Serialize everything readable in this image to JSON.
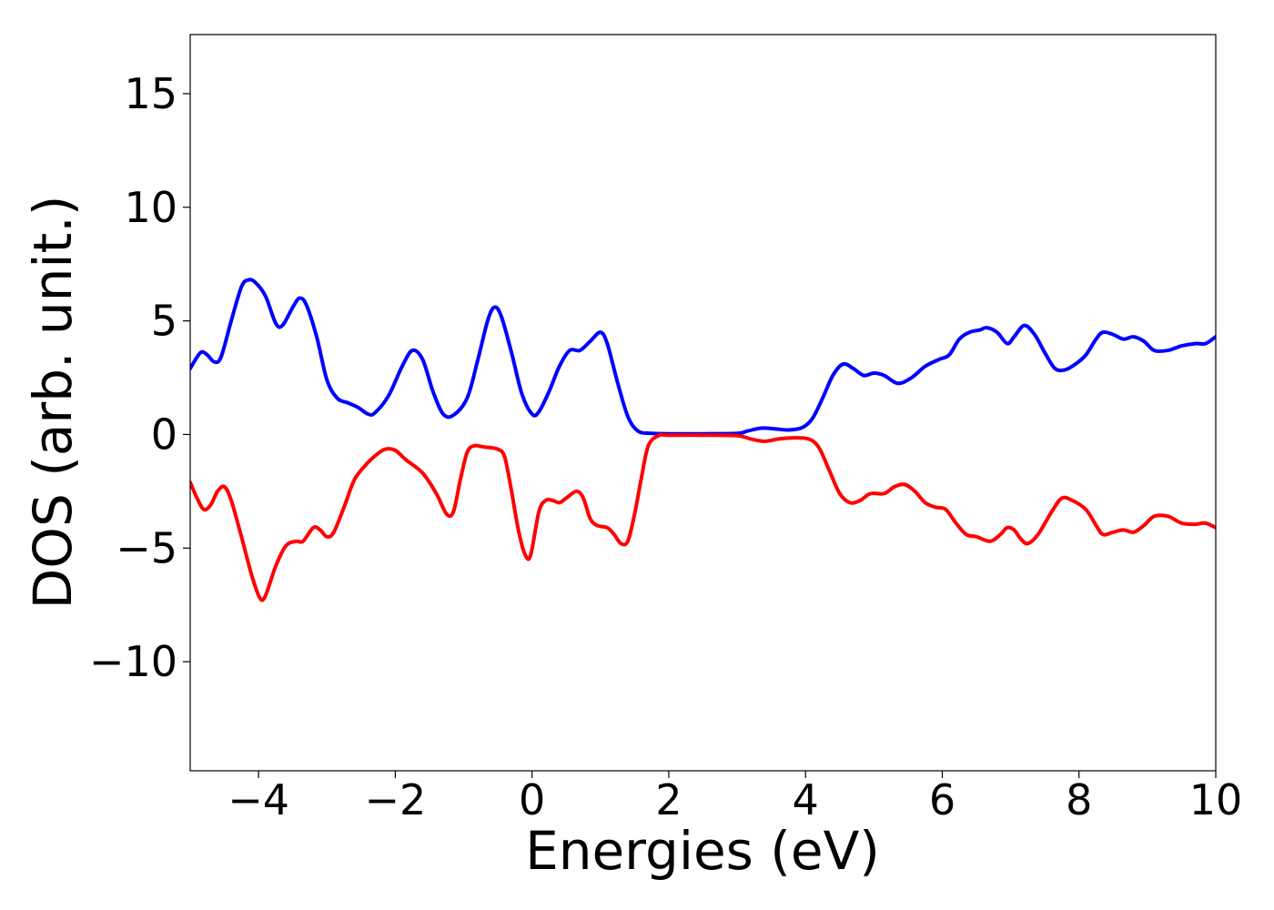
{
  "chart_data": {
    "type": "line",
    "xlabel": "Energies (eV)",
    "ylabel": "DOS (arb. unit.)",
    "xlim": [
      -5,
      10
    ],
    "ylim": [
      -14.8,
      17.6
    ],
    "xticks": [
      {
        "value": -4,
        "label": "−4"
      },
      {
        "value": -2,
        "label": "−2"
      },
      {
        "value": 0,
        "label": "0"
      },
      {
        "value": 2,
        "label": "2"
      },
      {
        "value": 4,
        "label": "4"
      },
      {
        "value": 6,
        "label": "6"
      },
      {
        "value": 8,
        "label": "8"
      },
      {
        "value": 10,
        "label": "10"
      }
    ],
    "yticks": [
      {
        "value": -10,
        "label": "−10"
      },
      {
        "value": -5,
        "label": "−5"
      },
      {
        "value": 0,
        "label": "0"
      },
      {
        "value": 5,
        "label": "5"
      },
      {
        "value": 10,
        "label": "10"
      },
      {
        "value": 15,
        "label": "15"
      }
    ],
    "grid": false,
    "series": [
      {
        "color": "#0000ff",
        "points": [
          [
            -5.0,
            2.9
          ],
          [
            -4.85,
            3.6
          ],
          [
            -4.75,
            3.5
          ],
          [
            -4.65,
            3.2
          ],
          [
            -4.55,
            3.4
          ],
          [
            -4.4,
            5.0
          ],
          [
            -4.25,
            6.5
          ],
          [
            -4.15,
            6.8
          ],
          [
            -4.05,
            6.7
          ],
          [
            -3.9,
            6.1
          ],
          [
            -3.75,
            4.9
          ],
          [
            -3.65,
            4.8
          ],
          [
            -3.5,
            5.6
          ],
          [
            -3.4,
            6.0
          ],
          [
            -3.3,
            5.7
          ],
          [
            -3.15,
            4.3
          ],
          [
            -3.0,
            2.4
          ],
          [
            -2.85,
            1.6
          ],
          [
            -2.7,
            1.4
          ],
          [
            -2.55,
            1.2
          ],
          [
            -2.4,
            0.9
          ],
          [
            -2.3,
            0.95
          ],
          [
            -2.1,
            1.7
          ],
          [
            -1.9,
            3.0
          ],
          [
            -1.75,
            3.7
          ],
          [
            -1.6,
            3.3
          ],
          [
            -1.45,
            1.9
          ],
          [
            -1.3,
            0.9
          ],
          [
            -1.15,
            0.85
          ],
          [
            -0.95,
            1.6
          ],
          [
            -0.8,
            3.2
          ],
          [
            -0.65,
            5.0
          ],
          [
            -0.55,
            5.6
          ],
          [
            -0.45,
            5.2
          ],
          [
            -0.3,
            3.6
          ],
          [
            -0.15,
            1.8
          ],
          [
            0.0,
            0.9
          ],
          [
            0.1,
            1.0
          ],
          [
            0.25,
            1.9
          ],
          [
            0.4,
            3.0
          ],
          [
            0.55,
            3.7
          ],
          [
            0.7,
            3.7
          ],
          [
            0.85,
            4.1
          ],
          [
            1.0,
            4.5
          ],
          [
            1.1,
            4.0
          ],
          [
            1.25,
            2.3
          ],
          [
            1.4,
            0.8
          ],
          [
            1.55,
            0.15
          ],
          [
            1.75,
            0.05
          ],
          [
            2.0,
            0.03
          ],
          [
            2.5,
            0.03
          ],
          [
            3.0,
            0.05
          ],
          [
            3.15,
            0.15
          ],
          [
            3.35,
            0.28
          ],
          [
            3.55,
            0.25
          ],
          [
            3.75,
            0.2
          ],
          [
            3.95,
            0.3
          ],
          [
            4.1,
            0.7
          ],
          [
            4.25,
            1.6
          ],
          [
            4.4,
            2.6
          ],
          [
            4.55,
            3.1
          ],
          [
            4.7,
            2.9
          ],
          [
            4.85,
            2.6
          ],
          [
            5.0,
            2.7
          ],
          [
            5.15,
            2.6
          ],
          [
            5.35,
            2.25
          ],
          [
            5.55,
            2.5
          ],
          [
            5.75,
            3.0
          ],
          [
            5.95,
            3.3
          ],
          [
            6.1,
            3.5
          ],
          [
            6.25,
            4.2
          ],
          [
            6.4,
            4.5
          ],
          [
            6.55,
            4.6
          ],
          [
            6.65,
            4.7
          ],
          [
            6.8,
            4.5
          ],
          [
            6.95,
            4.0
          ],
          [
            7.05,
            4.3
          ],
          [
            7.2,
            4.8
          ],
          [
            7.35,
            4.4
          ],
          [
            7.5,
            3.6
          ],
          [
            7.65,
            2.9
          ],
          [
            7.8,
            2.85
          ],
          [
            7.95,
            3.1
          ],
          [
            8.1,
            3.5
          ],
          [
            8.25,
            4.2
          ],
          [
            8.35,
            4.5
          ],
          [
            8.5,
            4.4
          ],
          [
            8.65,
            4.2
          ],
          [
            8.8,
            4.3
          ],
          [
            8.95,
            4.1
          ],
          [
            9.1,
            3.7
          ],
          [
            9.3,
            3.7
          ],
          [
            9.5,
            3.9
          ],
          [
            9.7,
            4.0
          ],
          [
            9.85,
            4.0
          ],
          [
            10.0,
            4.3
          ]
        ]
      },
      {
        "color": "#ff0000",
        "points": [
          [
            -5.0,
            -2.1
          ],
          [
            -4.9,
            -2.8
          ],
          [
            -4.8,
            -3.3
          ],
          [
            -4.7,
            -3.1
          ],
          [
            -4.6,
            -2.5
          ],
          [
            -4.5,
            -2.3
          ],
          [
            -4.4,
            -2.9
          ],
          [
            -4.25,
            -4.5
          ],
          [
            -4.1,
            -6.2
          ],
          [
            -3.98,
            -7.2
          ],
          [
            -3.9,
            -7.1
          ],
          [
            -3.75,
            -5.8
          ],
          [
            -3.6,
            -4.9
          ],
          [
            -3.45,
            -4.7
          ],
          [
            -3.35,
            -4.7
          ],
          [
            -3.2,
            -4.1
          ],
          [
            -3.1,
            -4.2
          ],
          [
            -3.0,
            -4.5
          ],
          [
            -2.9,
            -4.3
          ],
          [
            -2.75,
            -3.2
          ],
          [
            -2.6,
            -2.0
          ],
          [
            -2.45,
            -1.4
          ],
          [
            -2.3,
            -0.95
          ],
          [
            -2.15,
            -0.65
          ],
          [
            -2.0,
            -0.7
          ],
          [
            -1.85,
            -1.1
          ],
          [
            -1.6,
            -1.7
          ],
          [
            -1.4,
            -2.6
          ],
          [
            -1.25,
            -3.5
          ],
          [
            -1.15,
            -3.4
          ],
          [
            -1.05,
            -2.0
          ],
          [
            -0.95,
            -0.8
          ],
          [
            -0.85,
            -0.5
          ],
          [
            -0.7,
            -0.55
          ],
          [
            -0.5,
            -0.65
          ],
          [
            -0.4,
            -1.0
          ],
          [
            -0.3,
            -2.5
          ],
          [
            -0.2,
            -4.2
          ],
          [
            -0.1,
            -5.3
          ],
          [
            -0.02,
            -5.3
          ],
          [
            0.1,
            -3.4
          ],
          [
            0.2,
            -2.9
          ],
          [
            0.3,
            -2.9
          ],
          [
            0.4,
            -3.0
          ],
          [
            0.5,
            -2.8
          ],
          [
            0.65,
            -2.5
          ],
          [
            0.75,
            -2.8
          ],
          [
            0.85,
            -3.7
          ],
          [
            0.95,
            -4.0
          ],
          [
            1.1,
            -4.1
          ],
          [
            1.2,
            -4.4
          ],
          [
            1.3,
            -4.8
          ],
          [
            1.4,
            -4.7
          ],
          [
            1.5,
            -3.5
          ],
          [
            1.6,
            -1.9
          ],
          [
            1.7,
            -0.5
          ],
          [
            1.85,
            -0.05
          ],
          [
            2.0,
            -0.03
          ],
          [
            2.5,
            -0.03
          ],
          [
            3.0,
            -0.05
          ],
          [
            3.2,
            -0.2
          ],
          [
            3.4,
            -0.3
          ],
          [
            3.6,
            -0.2
          ],
          [
            3.8,
            -0.15
          ],
          [
            4.05,
            -0.2
          ],
          [
            4.2,
            -0.6
          ],
          [
            4.35,
            -1.6
          ],
          [
            4.5,
            -2.6
          ],
          [
            4.65,
            -3.0
          ],
          [
            4.8,
            -2.9
          ],
          [
            4.95,
            -2.6
          ],
          [
            5.15,
            -2.6
          ],
          [
            5.3,
            -2.3
          ],
          [
            5.45,
            -2.2
          ],
          [
            5.6,
            -2.5
          ],
          [
            5.75,
            -3.0
          ],
          [
            5.9,
            -3.2
          ],
          [
            6.05,
            -3.3
          ],
          [
            6.2,
            -3.9
          ],
          [
            6.35,
            -4.4
          ],
          [
            6.5,
            -4.5
          ],
          [
            6.7,
            -4.7
          ],
          [
            6.85,
            -4.4
          ],
          [
            6.95,
            -4.1
          ],
          [
            7.05,
            -4.2
          ],
          [
            7.15,
            -4.6
          ],
          [
            7.25,
            -4.8
          ],
          [
            7.4,
            -4.4
          ],
          [
            7.6,
            -3.4
          ],
          [
            7.75,
            -2.8
          ],
          [
            7.9,
            -2.9
          ],
          [
            8.1,
            -3.3
          ],
          [
            8.25,
            -4.0
          ],
          [
            8.35,
            -4.4
          ],
          [
            8.5,
            -4.3
          ],
          [
            8.65,
            -4.2
          ],
          [
            8.8,
            -4.3
          ],
          [
            8.95,
            -4.0
          ],
          [
            9.1,
            -3.6
          ],
          [
            9.3,
            -3.6
          ],
          [
            9.5,
            -3.9
          ],
          [
            9.7,
            -3.95
          ],
          [
            9.85,
            -3.9
          ],
          [
            10.0,
            -4.1
          ]
        ]
      }
    ]
  }
}
